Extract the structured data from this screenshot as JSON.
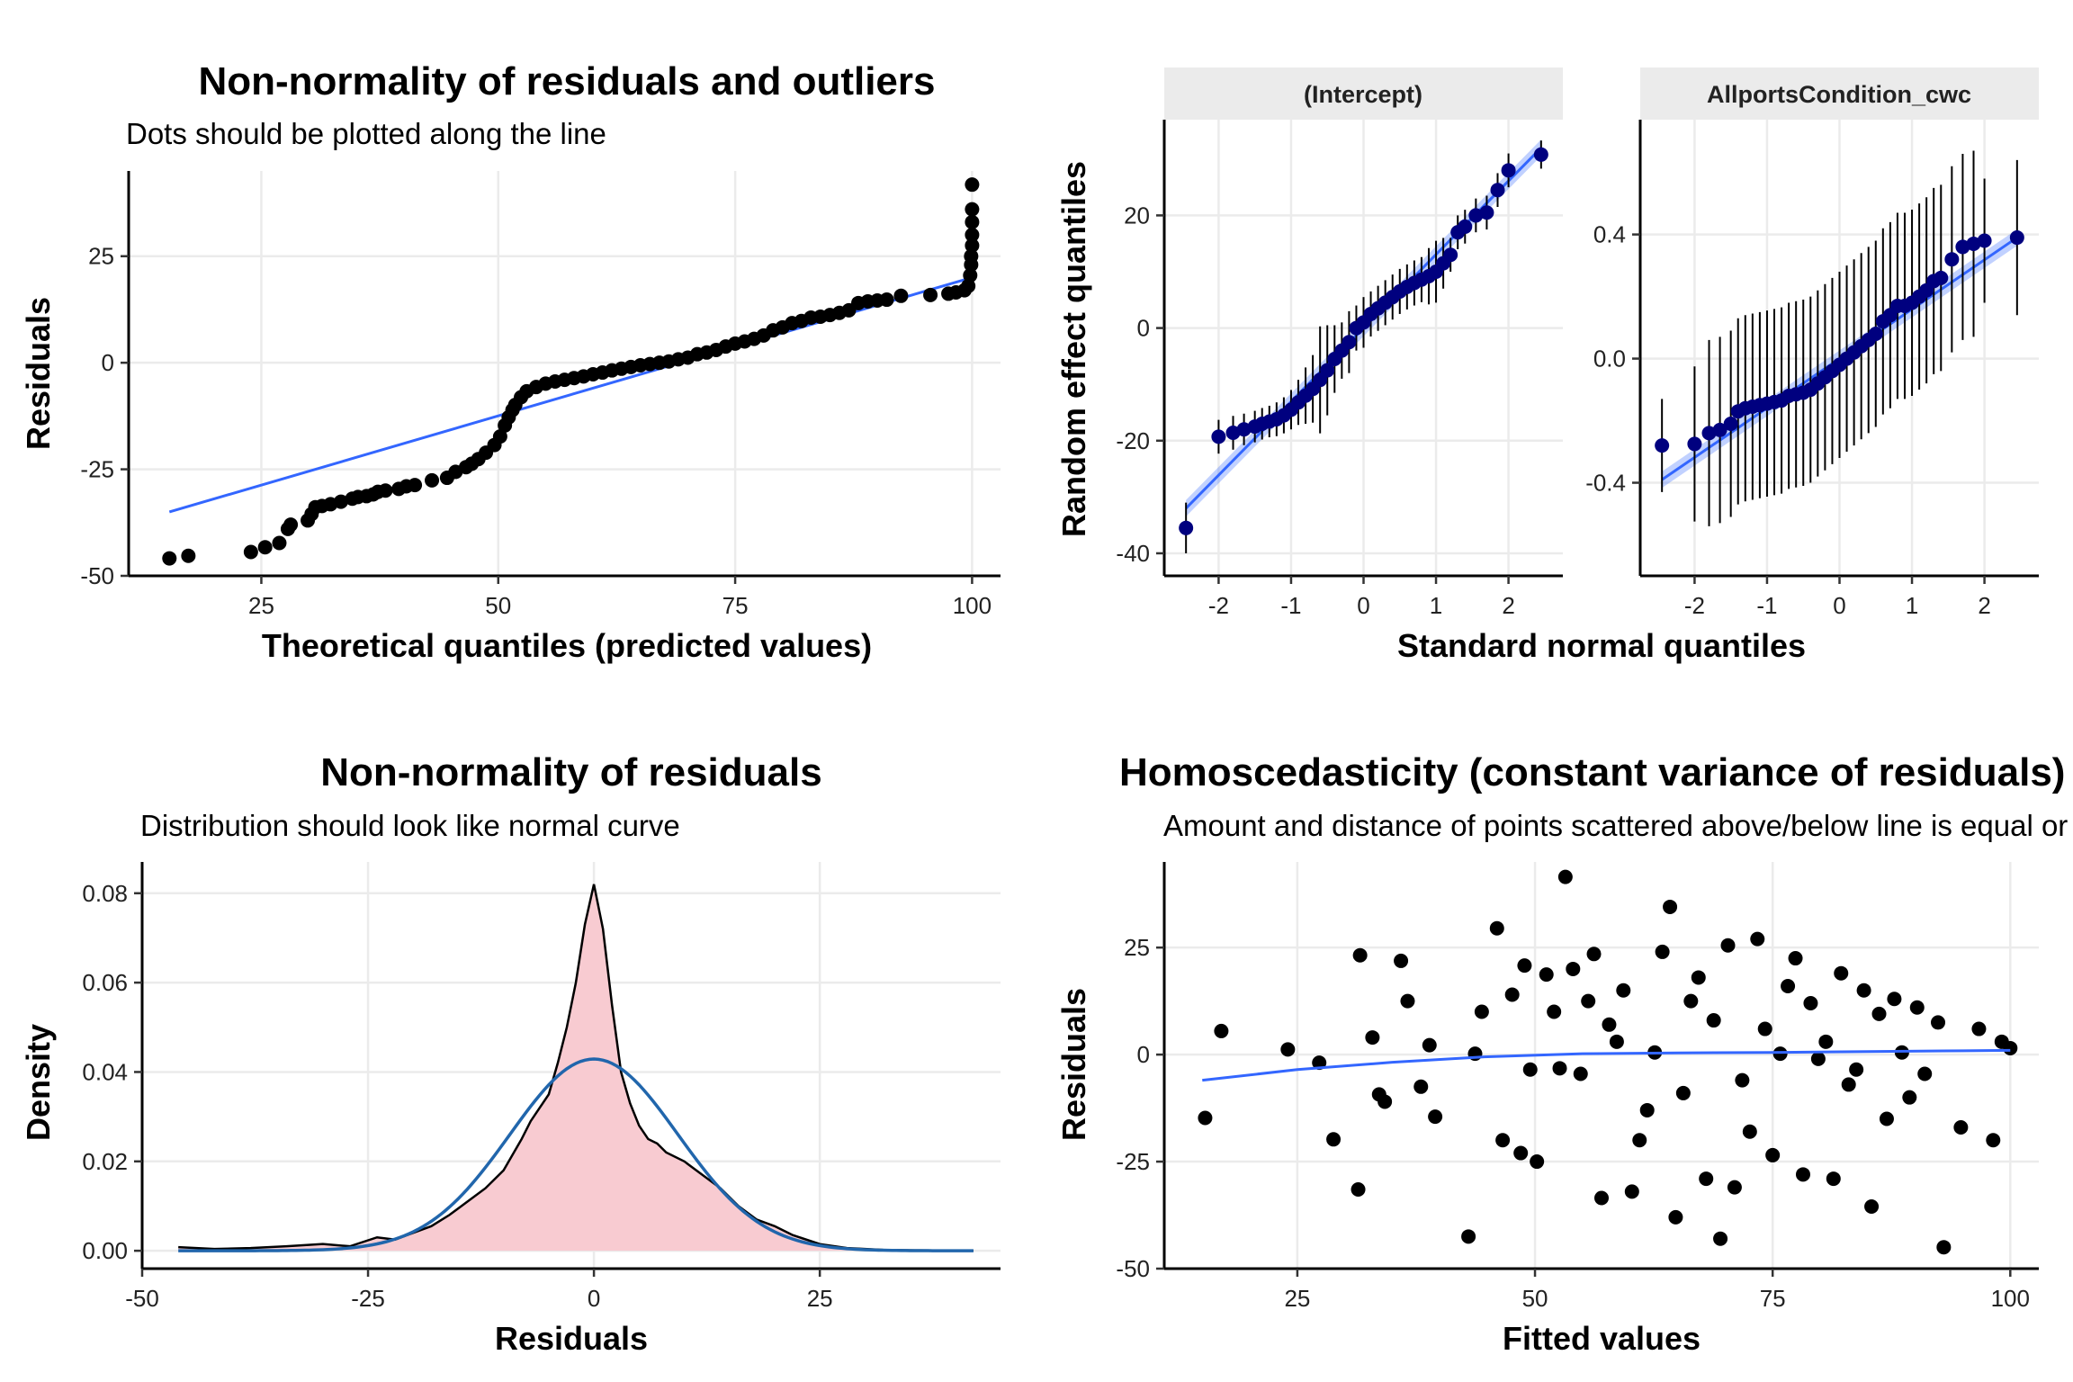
{
  "chart_data": [
    {
      "id": "qq",
      "type": "scatter",
      "title": "Non-normality of residuals and outliers",
      "subtitle": "Dots should be plotted along the line",
      "xlabel": "Theoretical quantiles (predicted values)",
      "ylabel": "Residuals",
      "xlim": [
        11,
        103
      ],
      "ylim": [
        -50,
        45
      ],
      "xticks": [
        25,
        50,
        75,
        100
      ],
      "yticks": [
        -50,
        -25,
        0,
        25
      ],
      "grid": true,
      "reference_line": {
        "x": [
          15.3,
          100
        ],
        "y": [
          -35,
          20
        ]
      },
      "line_color": "#3366ff",
      "point_color": "#000000",
      "points_x": [
        15.3,
        17.3,
        23.9,
        25.4,
        26.9,
        27.8,
        28.1,
        29.9,
        30.3,
        30.7,
        31.4,
        32.3,
        33.4,
        34.6,
        35.2,
        36.1,
        36.8,
        37.3,
        38.1,
        39.5,
        40.3,
        41.2,
        43.0,
        44.6,
        45.5,
        46.6,
        47.2,
        47.9,
        48.7,
        49.6,
        50.2,
        50.7,
        51.1,
        51.5,
        51.8,
        52.4,
        53.0,
        54.0,
        55.0,
        56.0,
        57.0,
        58.0,
        59.0,
        60.0,
        61.0,
        62.0,
        63.0,
        64.0,
        65.0,
        66.0,
        67.0,
        68.0,
        69.0,
        70.0,
        71.0,
        72.0,
        73.0,
        74.0,
        75.0,
        76.0,
        77.0,
        78.0,
        79.0,
        80.0,
        81.0,
        82.0,
        83.0,
        84.0,
        85.0,
        86.0,
        87.0,
        88.0,
        89.0,
        90.0,
        91.0,
        92.5,
        95.6,
        97.5,
        98.3,
        99.2,
        99.6,
        99.8,
        99.9,
        99.9,
        100.0,
        100.0,
        100.0,
        100.0,
        100.0
      ],
      "points_y": [
        -45.9,
        -45.3,
        -44.4,
        -43.3,
        -42.3,
        -39.0,
        -38.0,
        -37.0,
        -35.5,
        -33.9,
        -33.6,
        -33.2,
        -32.6,
        -31.9,
        -31.5,
        -31.3,
        -30.9,
        -30.3,
        -30.0,
        -29.6,
        -29.0,
        -28.7,
        -27.6,
        -27.0,
        -25.6,
        -24.5,
        -23.7,
        -22.6,
        -21.1,
        -19.3,
        -17.3,
        -14.7,
        -12.8,
        -11.1,
        -9.9,
        -8.1,
        -6.7,
        -5.7,
        -4.9,
        -4.4,
        -4.0,
        -3.6,
        -3.2,
        -2.7,
        -2.3,
        -1.8,
        -1.4,
        -1.0,
        -0.6,
        -0.3,
        0.0,
        0.3,
        0.8,
        1.2,
        2.0,
        2.4,
        3.0,
        3.8,
        4.5,
        5.0,
        5.6,
        6.4,
        7.6,
        8.3,
        9.3,
        9.8,
        10.6,
        10.8,
        11.2,
        11.7,
        12.3,
        14.0,
        14.4,
        14.6,
        14.8,
        15.7,
        15.9,
        16.2,
        16.5,
        17.0,
        18.0,
        20.5,
        23.0,
        25.0,
        27.5,
        30.0,
        33.0,
        36.0,
        41.8
      ]
    },
    {
      "id": "re",
      "type": "scatter",
      "xlabel": "Standard normal quantiles",
      "ylabel": "Random effect quantiles",
      "point_color": "#00007f",
      "line_color": "#3366ff",
      "panels": [
        {
          "label": "(Intercept)",
          "xlim": [
            -2.75,
            2.75
          ],
          "ylim": [
            -44,
            37
          ],
          "xticks": [
            -2,
            -1,
            0,
            1,
            2
          ],
          "yticks": [
            -40,
            -20,
            0,
            20
          ],
          "ytick_labels": [
            "-40",
            "-20",
            "0",
            "20"
          ],
          "line": {
            "x": [
              -2.45,
              2.45
            ],
            "y": [
              -32,
              32
            ]
          },
          "x": [
            -2.45,
            -2.0,
            -1.8,
            -1.65,
            -1.5,
            -1.4,
            -1.3,
            -1.2,
            -1.1,
            -1.0,
            -0.9,
            -0.8,
            -0.7,
            -0.6,
            -0.5,
            -0.4,
            -0.3,
            -0.2,
            -0.1,
            0.0,
            0.1,
            0.2,
            0.3,
            0.4,
            0.5,
            0.6,
            0.7,
            0.8,
            0.9,
            1.0,
            1.1,
            1.2,
            1.3,
            1.4,
            1.55,
            1.7,
            1.85,
            2.0,
            2.45
          ],
          "y": [
            -35.5,
            -19.3,
            -18.6,
            -18.0,
            -17.5,
            -17.0,
            -16.6,
            -16.2,
            -15.5,
            -14.5,
            -13.2,
            -12.0,
            -10.8,
            -9.2,
            -7.5,
            -5.5,
            -4.0,
            -2.5,
            0.0,
            1.0,
            2.5,
            3.5,
            4.5,
            5.5,
            6.5,
            7.3,
            8.0,
            8.6,
            9.2,
            10.0,
            11.5,
            13.0,
            17.0,
            18.0,
            20.0,
            20.5,
            24.5,
            28.0,
            30.8
          ],
          "err": [
            4.5,
            3.0,
            3.0,
            2.8,
            2.8,
            2.8,
            2.8,
            3.0,
            3.2,
            3.5,
            4.0,
            5.0,
            6.0,
            9.5,
            8.0,
            6.0,
            5.0,
            5.5,
            4.0,
            4.5,
            4.0,
            4.0,
            4.0,
            4.0,
            4.0,
            4.0,
            4.0,
            4.0,
            5.0,
            5.5,
            4.5,
            3.0,
            3.0,
            3.0,
            3.0,
            3.0,
            3.0,
            3.0,
            2.5
          ]
        },
        {
          "label": "AllportsCondition_cwc",
          "xlim": [
            -2.75,
            2.75
          ],
          "ylim": [
            -0.7,
            0.77
          ],
          "xticks": [
            -2,
            -1,
            0,
            1,
            2
          ],
          "yticks": [
            -0.4,
            0.0,
            0.4
          ],
          "ytick_labels": [
            "-0.4",
            "0.0",
            "0.4"
          ],
          "line": {
            "x": [
              -2.45,
              2.45
            ],
            "y": [
              -0.39,
              0.39
            ]
          },
          "x": [
            -2.45,
            -2.0,
            -1.8,
            -1.65,
            -1.5,
            -1.4,
            -1.3,
            -1.2,
            -1.1,
            -1.0,
            -0.9,
            -0.8,
            -0.7,
            -0.6,
            -0.5,
            -0.4,
            -0.3,
            -0.2,
            -0.1,
            0.0,
            0.1,
            0.2,
            0.3,
            0.4,
            0.5,
            0.6,
            0.7,
            0.8,
            0.9,
            1.0,
            1.1,
            1.2,
            1.3,
            1.4,
            1.55,
            1.7,
            1.85,
            2.0,
            2.45
          ],
          "y": [
            -0.28,
            -0.275,
            -0.24,
            -0.23,
            -0.21,
            -0.17,
            -0.16,
            -0.155,
            -0.15,
            -0.145,
            -0.14,
            -0.135,
            -0.12,
            -0.115,
            -0.11,
            -0.1,
            -0.08,
            -0.06,
            -0.04,
            -0.02,
            0.0,
            0.02,
            0.04,
            0.06,
            0.08,
            0.12,
            0.14,
            0.17,
            0.17,
            0.18,
            0.2,
            0.22,
            0.25,
            0.26,
            0.32,
            0.36,
            0.37,
            0.38,
            0.39
          ],
          "err": [
            0.15,
            0.25,
            0.3,
            0.3,
            0.3,
            0.3,
            0.3,
            0.3,
            0.3,
            0.3,
            0.3,
            0.3,
            0.3,
            0.3,
            0.3,
            0.3,
            0.3,
            0.3,
            0.3,
            0.3,
            0.3,
            0.3,
            0.3,
            0.3,
            0.3,
            0.3,
            0.3,
            0.3,
            0.3,
            0.3,
            0.3,
            0.3,
            0.3,
            0.3,
            0.3,
            0.3,
            0.3,
            0.2,
            0.25
          ]
        }
      ]
    },
    {
      "id": "dens",
      "type": "area",
      "title": "Non-normality of residuals",
      "subtitle": "Distribution should look like normal curve",
      "xlabel": "Residuals",
      "ylabel": "Density",
      "xlim": [
        -50,
        45
      ],
      "ylim": [
        -0.004,
        0.087
      ],
      "xticks": [
        -50,
        -25,
        0,
        25
      ],
      "yticks": [
        0.0,
        0.02,
        0.04,
        0.06,
        0.08
      ],
      "ytick_labels": [
        "0.00",
        "0.02",
        "0.04",
        "0.06",
        "0.08"
      ],
      "grid": true,
      "fill_color": "#f8cbd1",
      "normal_curve_color": "#2166ac",
      "normal_curve": {
        "mean": 0,
        "sd": 9.3
      },
      "kde_x": [
        -46,
        -42,
        -38,
        -34,
        -30,
        -27,
        -24,
        -22,
        -20,
        -18,
        -16,
        -14,
        -12,
        -10,
        -8,
        -7,
        -6,
        -5,
        -4,
        -3,
        -2,
        -1,
        0,
        1,
        2,
        3,
        4,
        5,
        6,
        7,
        8,
        10,
        12,
        14,
        16,
        18,
        20,
        22,
        25,
        28,
        32,
        36,
        42
      ],
      "kde_y": [
        0.0008,
        0.0004,
        0.0006,
        0.001,
        0.0015,
        0.001,
        0.003,
        0.0025,
        0.004,
        0.0055,
        0.008,
        0.011,
        0.014,
        0.018,
        0.025,
        0.029,
        0.032,
        0.035,
        0.042,
        0.05,
        0.06,
        0.073,
        0.082,
        0.072,
        0.055,
        0.04,
        0.033,
        0.028,
        0.025,
        0.024,
        0.022,
        0.02,
        0.017,
        0.014,
        0.01,
        0.007,
        0.0055,
        0.0035,
        0.0015,
        0.0006,
        0.0002,
        0.0001,
        0.0
      ]
    },
    {
      "id": "homo",
      "type": "scatter",
      "title": "Homoscedasticity (constant variance of residuals)",
      "subtitle": "Amount and distance of points scattered above/below line is equal or randomly spread",
      "xlabel": "Fitted values",
      "ylabel": "Residuals",
      "xlim": [
        11,
        103
      ],
      "ylim": [
        -50,
        45
      ],
      "xticks": [
        25,
        50,
        75,
        100
      ],
      "yticks": [
        -50,
        -25,
        0,
        25
      ],
      "grid": true,
      "line_color": "#3366ff",
      "smooth_x": [
        15,
        25,
        35,
        45,
        55,
        65,
        75,
        85,
        95,
        100
      ],
      "smooth_y": [
        -6.0,
        -3.5,
        -1.8,
        -0.5,
        0.2,
        0.4,
        0.5,
        0.7,
        0.9,
        1.0
      ],
      "points_x": [
        15.3,
        17.0,
        24.0,
        27.3,
        28.8,
        31.4,
        31.6,
        32.9,
        33.6,
        34.2,
        35.9,
        36.6,
        38.0,
        38.9,
        39.5,
        43.0,
        43.7,
        44.4,
        46.0,
        46.6,
        47.6,
        48.5,
        48.9,
        49.5,
        50.2,
        51.2,
        52.0,
        52.6,
        53.2,
        54.0,
        54.8,
        55.6,
        56.2,
        57.0,
        57.8,
        58.6,
        59.3,
        60.2,
        61.0,
        61.8,
        62.6,
        63.4,
        64.2,
        64.8,
        65.6,
        66.4,
        67.2,
        68.0,
        68.8,
        69.5,
        70.3,
        71.0,
        71.8,
        72.6,
        73.4,
        74.2,
        75.0,
        75.8,
        76.6,
        77.4,
        78.2,
        79.0,
        79.8,
        80.6,
        81.4,
        82.2,
        83.0,
        83.8,
        84.6,
        85.4,
        86.2,
        87.0,
        87.8,
        88.6,
        89.4,
        90.2,
        91.0,
        92.4,
        93.0,
        94.8,
        96.7,
        98.2,
        99.1,
        100.0
      ],
      "points_y": [
        -14.8,
        5.5,
        1.2,
        -1.9,
        -19.8,
        -31.5,
        23.2,
        4.0,
        -9.3,
        -11.0,
        21.9,
        12.5,
        -7.5,
        2.2,
        -14.5,
        -42.5,
        0.2,
        10.0,
        29.5,
        -20.0,
        14.0,
        -23.0,
        20.8,
        -3.5,
        -25.0,
        18.7,
        10.0,
        -3.2,
        41.5,
        20.0,
        -4.5,
        12.5,
        23.5,
        -33.5,
        7.0,
        3.0,
        15.0,
        -32.0,
        -20.0,
        -13.0,
        0.5,
        24.0,
        34.5,
        -38.0,
        -9.0,
        12.5,
        18.0,
        -29.0,
        8.0,
        -43.0,
        25.5,
        -31.0,
        -6.0,
        -18.0,
        27.0,
        6.0,
        -23.5,
        0.2,
        16.0,
        22.5,
        -28.0,
        12.0,
        -1.0,
        3.0,
        -29.0,
        19.0,
        -7.0,
        -3.5,
        15.0,
        -35.5,
        9.5,
        -15.0,
        13.0,
        0.5,
        -10.0,
        11.0,
        -4.5,
        7.5,
        -45.0,
        -17.0,
        6.0,
        -20.0,
        3.0,
        1.5
      ]
    }
  ]
}
